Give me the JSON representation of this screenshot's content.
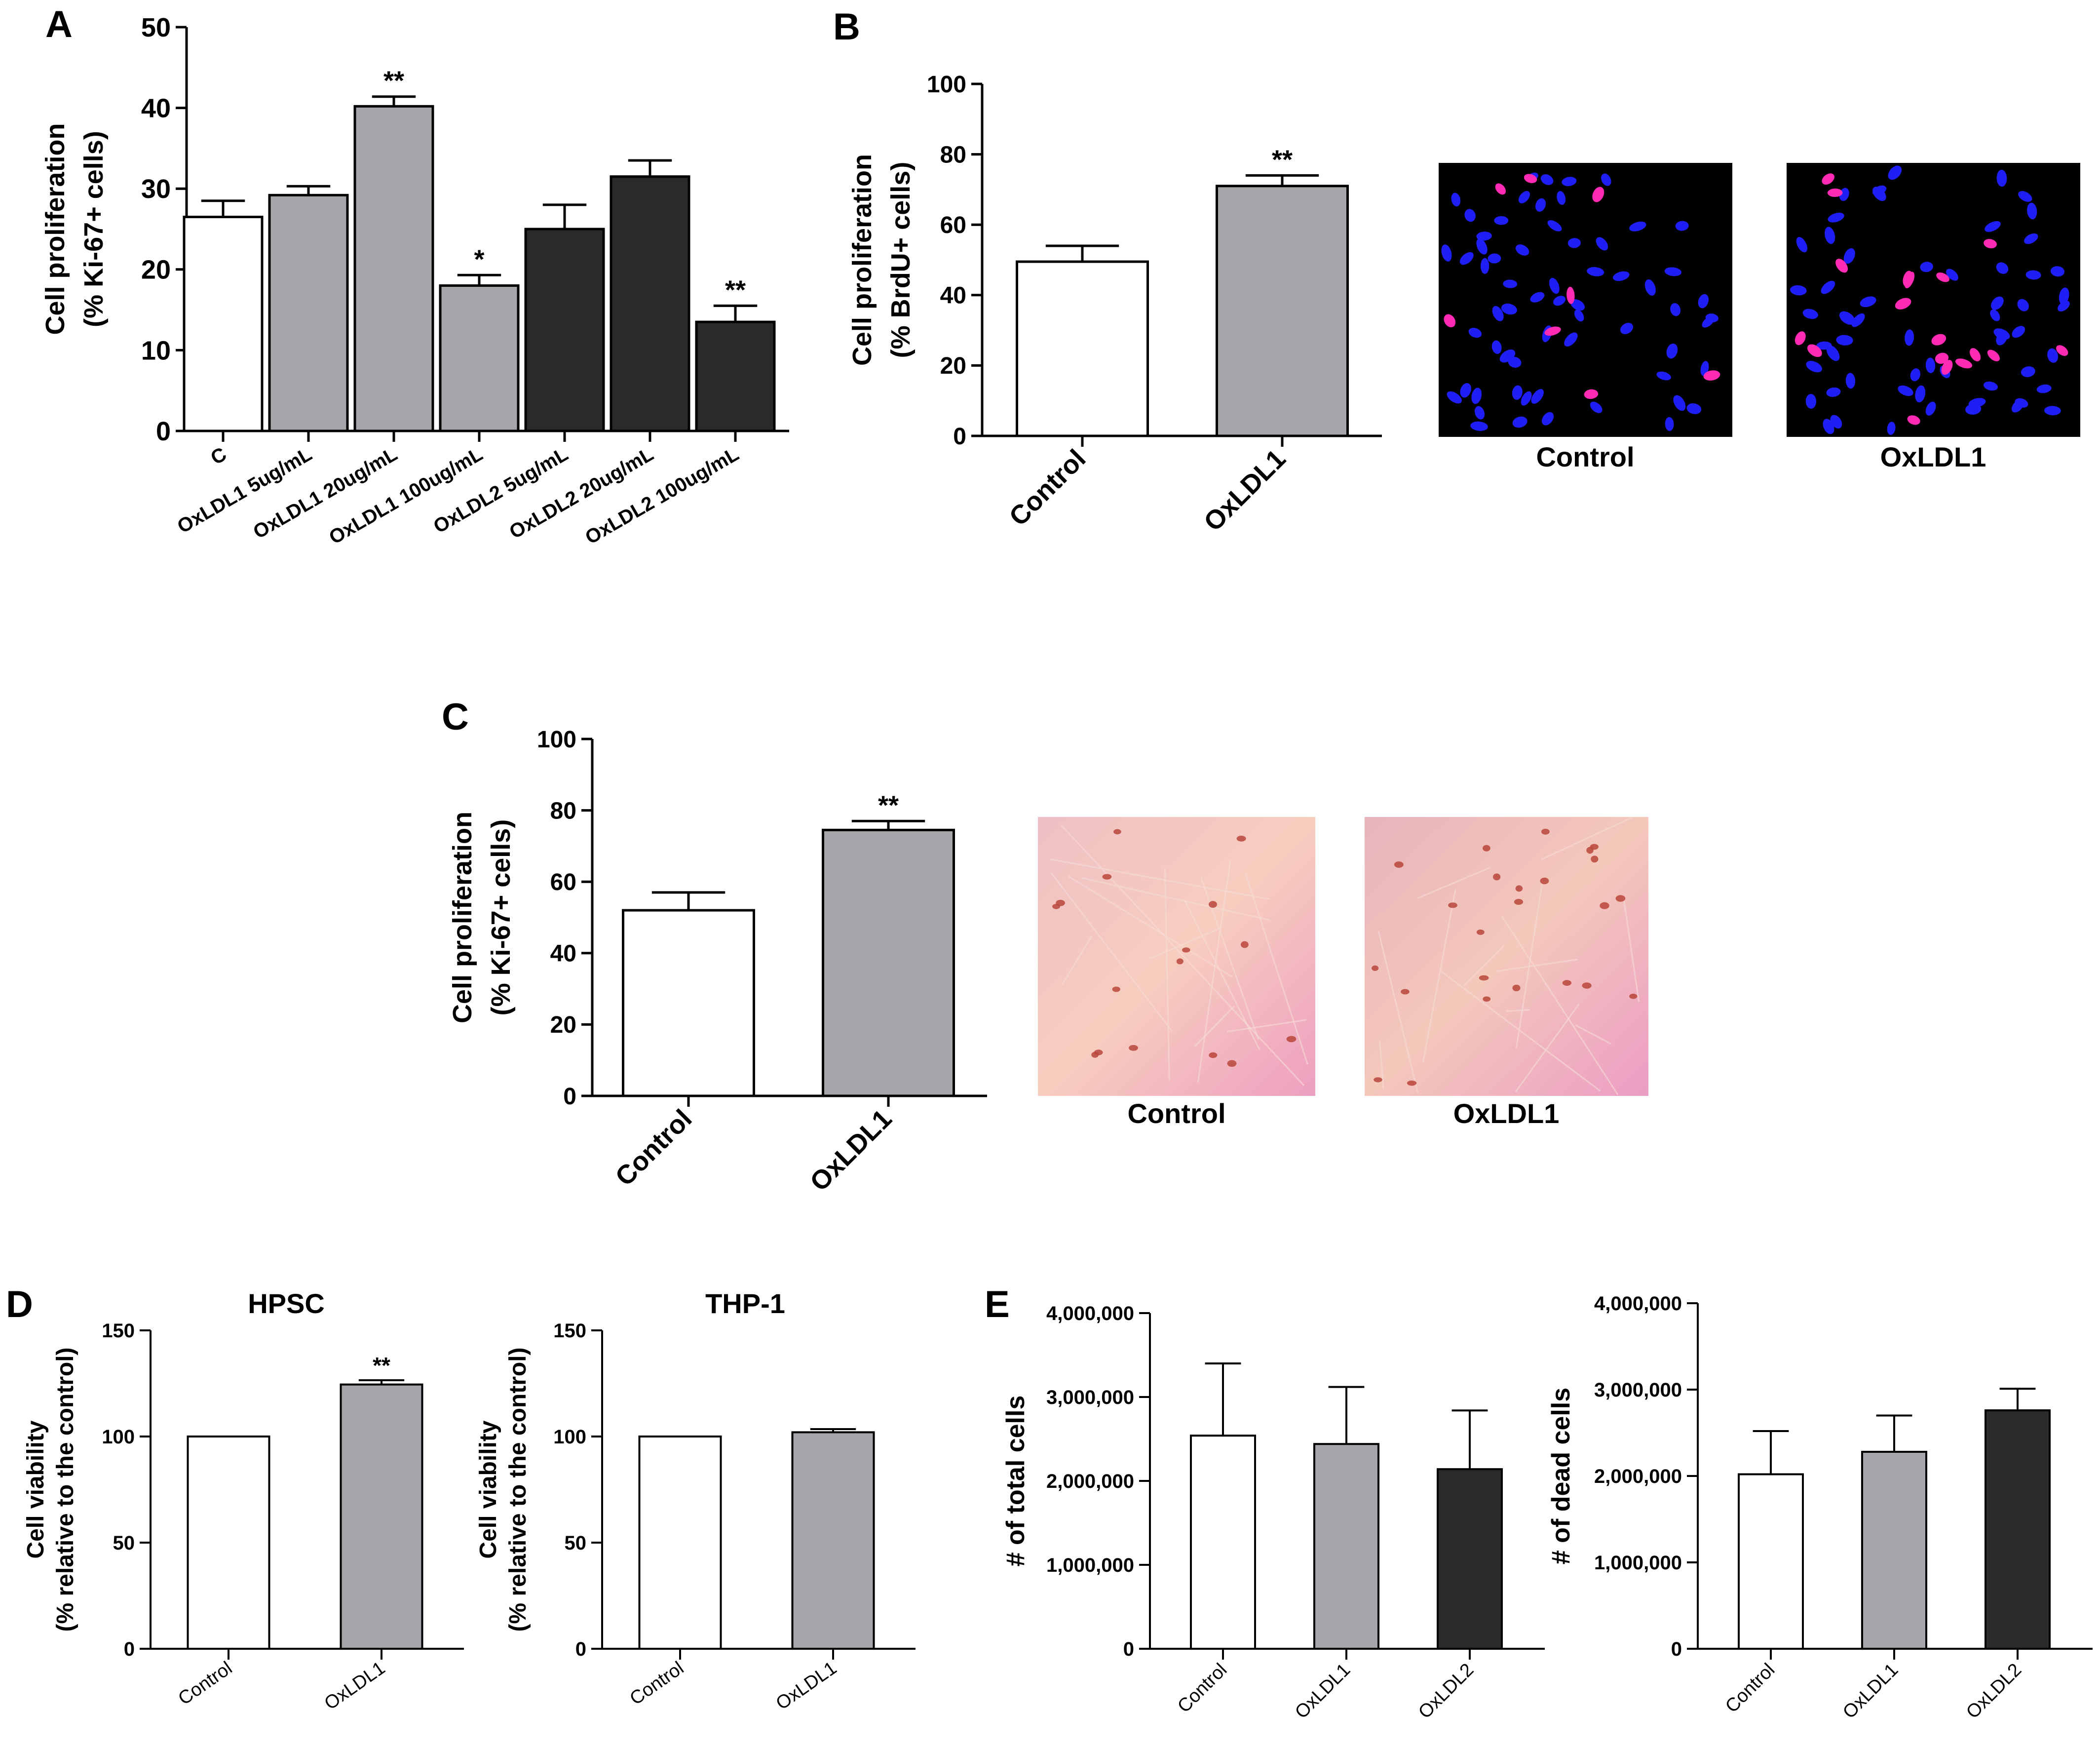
{
  "figure_panels": [
    {
      "letter": "A"
    },
    {
      "letter": "B"
    },
    {
      "letter": "C"
    },
    {
      "letter": "D"
    },
    {
      "letter": "E"
    }
  ],
  "image_labels": {
    "B": [
      "Control",
      "OxLDL1"
    ],
    "C": [
      "Control",
      "OxLDL1"
    ]
  },
  "colors": {
    "white_bar": "#ffffff",
    "gray_bar": "#a6a6aa",
    "dark_bar": "#2a2a2a",
    "fluor_bg": "#000000",
    "nucleus_blue": "#1e1ef5",
    "nucleus_pink": "#ff2bb5",
    "ihc_bg": "#f4c2c2",
    "ihc_stain": "#b8453a"
  },
  "chart_data": [
    {
      "id": "A",
      "type": "bar",
      "title": "",
      "ylabel_line1": "Cell proliferation",
      "ylabel_line2": "(% Ki-67+ cells)",
      "ylim": [
        0,
        50
      ],
      "yticks": [
        0,
        10,
        20,
        30,
        40,
        50
      ],
      "categories": [
        "C",
        "OxLDL1 5ug/mL",
        "OxLDL1 20ug/mL",
        "OxLDL1 100ug/mL",
        "OxLDL2 5ug/mL",
        "OxLDL2 20ug/mL",
        "OxLDL2 100ug/mL"
      ],
      "values": [
        26.5,
        29.2,
        40.2,
        18.0,
        25.0,
        31.5,
        13.5
      ],
      "errors": [
        2.0,
        1.1,
        1.2,
        1.3,
        3.0,
        2.0,
        2.0
      ],
      "colors": [
        "white",
        "gray",
        "gray",
        "gray",
        "dark",
        "dark",
        "dark"
      ],
      "annotations": [
        "",
        "",
        "**",
        "*",
        "",
        "",
        "**"
      ]
    },
    {
      "id": "B",
      "type": "bar",
      "title": "",
      "ylabel_line1": "Cell proliferation",
      "ylabel_line2": "(% BrdU+ cells)",
      "ylim": [
        0,
        100
      ],
      "yticks": [
        0,
        20,
        40,
        60,
        80,
        100
      ],
      "categories": [
        "Control",
        "OxLDL1"
      ],
      "values": [
        49.5,
        71.0
      ],
      "errors": [
        4.5,
        3.0
      ],
      "colors": [
        "white",
        "gray"
      ],
      "annotations": [
        "",
        "**"
      ]
    },
    {
      "id": "C",
      "type": "bar",
      "title": "",
      "ylabel_line1": "Cell proliferation",
      "ylabel_line2": "(% Ki-67+ cells)",
      "ylim": [
        0,
        100
      ],
      "yticks": [
        0,
        20,
        40,
        60,
        80,
        100
      ],
      "categories": [
        "Control",
        "OxLDL1"
      ],
      "values": [
        52.0,
        74.5
      ],
      "errors": [
        5.0,
        2.5
      ],
      "colors": [
        "white",
        "gray"
      ],
      "annotations": [
        "",
        "**"
      ]
    },
    {
      "id": "D1",
      "type": "bar",
      "title": "HPSC",
      "ylabel_line1": "Cell viability",
      "ylabel_line2": "(% relative to the control)",
      "ylim": [
        0,
        150
      ],
      "yticks": [
        0,
        50,
        100,
        150
      ],
      "categories": [
        "Control",
        "OxLDL1"
      ],
      "values": [
        100,
        124.5
      ],
      "errors": [
        0,
        2.0
      ],
      "colors": [
        "white",
        "gray"
      ],
      "annotations": [
        "",
        "**"
      ]
    },
    {
      "id": "D2",
      "type": "bar",
      "title": "THP-1",
      "ylabel_line1": "Cell viability",
      "ylabel_line2": "(% relative to the control)",
      "ylim": [
        0,
        150
      ],
      "yticks": [
        0,
        50,
        100,
        150
      ],
      "categories": [
        "Control",
        "OxLDL1"
      ],
      "values": [
        100,
        102
      ],
      "errors": [
        0,
        1.5
      ],
      "colors": [
        "white",
        "gray"
      ],
      "annotations": [
        "",
        ""
      ]
    },
    {
      "id": "E1",
      "type": "bar",
      "title": "",
      "ylabel_line1": "# of total cells",
      "ylabel_line2": "",
      "ylim": [
        0,
        4000000
      ],
      "yticks": [
        0,
        1000000,
        2000000,
        3000000,
        4000000
      ],
      "ytick_labels": [
        "0",
        "1,000,000",
        "2,000,000",
        "3,000,000",
        "4,000,000"
      ],
      "categories": [
        "Control",
        "OxLDL1",
        "OxLDL2"
      ],
      "values": [
        2540000,
        2440000,
        2140000
      ],
      "errors": [
        860000,
        680000,
        700000
      ],
      "colors": [
        "white",
        "gray",
        "dark"
      ],
      "annotations": [
        "",
        "",
        ""
      ]
    },
    {
      "id": "E2",
      "type": "bar",
      "title": "",
      "ylabel_line1": "# of dead cells",
      "ylabel_line2": "",
      "ylim": [
        0,
        4000000
      ],
      "yticks": [
        0,
        1000000,
        2000000,
        3000000,
        4000000
      ],
      "ytick_labels": [
        "0",
        "1,000,000",
        "2,000,000",
        "3,000,000",
        "4,000,000"
      ],
      "categories": [
        "Control",
        "OxLDL1",
        "OxLDL2"
      ],
      "values": [
        2020000,
        2280000,
        2760000
      ],
      "errors": [
        500000,
        420000,
        250000
      ],
      "colors": [
        "white",
        "gray",
        "dark"
      ],
      "annotations": [
        "",
        "",
        ""
      ]
    }
  ]
}
